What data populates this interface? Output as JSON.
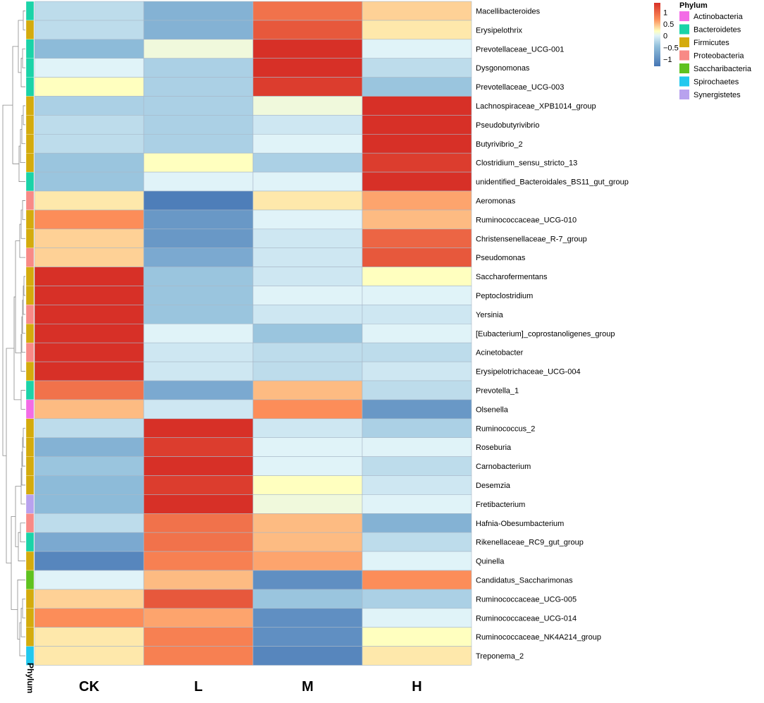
{
  "chart_data": {
    "type": "heatmap",
    "title": "",
    "columns": [
      "CK",
      "L",
      "M",
      "H"
    ],
    "rows": [
      {
        "name": "Macellibacteroides",
        "phylum": "Bacteroidetes",
        "values": [
          -0.2,
          -0.6,
          0.9,
          0.4
        ]
      },
      {
        "name": "Erysipelothrix",
        "phylum": "Firmicutes",
        "values": [
          -0.2,
          -0.6,
          1.1,
          0.3
        ]
      },
      {
        "name": "Prevotellaceae_UCG-001",
        "phylum": "Bacteroidetes",
        "values": [
          -0.5,
          0.1,
          1.4,
          0.0
        ]
      },
      {
        "name": "Dysgonomonas",
        "phylum": "Bacteroidetes",
        "values": [
          0.0,
          -0.3,
          1.4,
          -0.2
        ]
      },
      {
        "name": "Prevotellaceae_UCG-003",
        "phylum": "Bacteroidetes",
        "values": [
          0.2,
          -0.3,
          1.3,
          -0.4
        ]
      },
      {
        "name": "Lachnospiraceae_XPB1014_group",
        "phylum": "Firmicutes",
        "values": [
          -0.3,
          -0.3,
          0.1,
          1.4
        ]
      },
      {
        "name": "Pseudobutyrivibrio",
        "phylum": "Firmicutes",
        "values": [
          -0.2,
          -0.3,
          -0.1,
          1.4
        ]
      },
      {
        "name": "Butyrivibrio_2",
        "phylum": "Firmicutes",
        "values": [
          -0.2,
          -0.3,
          0.0,
          1.4
        ]
      },
      {
        "name": "Clostridium_sensu_stricto_13",
        "phylum": "Firmicutes",
        "values": [
          -0.4,
          0.2,
          -0.3,
          1.3
        ]
      },
      {
        "name": "unidentified_Bacteroidales_BS11_gut_group",
        "phylum": "Bacteroidetes",
        "values": [
          -0.4,
          0.0,
          0.0,
          1.4
        ]
      },
      {
        "name": "Aeromonas",
        "phylum": "Proteobacteria",
        "values": [
          0.3,
          -1.2,
          0.3,
          0.6
        ]
      },
      {
        "name": "Ruminococcaceae_UCG-010",
        "phylum": "Firmicutes",
        "values": [
          0.7,
          -0.9,
          0.0,
          0.5
        ]
      },
      {
        "name": "Christensenellaceae_R-7_group",
        "phylum": "Firmicutes",
        "values": [
          0.4,
          -0.9,
          -0.1,
          1.0
        ]
      },
      {
        "name": "Pseudomonas",
        "phylum": "Proteobacteria",
        "values": [
          0.4,
          -0.7,
          -0.1,
          1.1
        ]
      },
      {
        "name": "Saccharofermentans",
        "phylum": "Firmicutes",
        "values": [
          1.4,
          -0.4,
          -0.1,
          0.2
        ]
      },
      {
        "name": "Peptoclostridium",
        "phylum": "Firmicutes",
        "values": [
          1.4,
          -0.4,
          0.0,
          0.0
        ]
      },
      {
        "name": "Yersinia",
        "phylum": "Proteobacteria",
        "values": [
          1.4,
          -0.4,
          -0.1,
          -0.1
        ]
      },
      {
        "name": "[Eubacterium]_coprostanoligenes_group",
        "phylum": "Firmicutes",
        "values": [
          1.4,
          0.0,
          -0.4,
          0.0
        ]
      },
      {
        "name": "Acinetobacter",
        "phylum": "Proteobacteria",
        "values": [
          1.4,
          -0.1,
          -0.2,
          -0.2
        ]
      },
      {
        "name": "Erysipelotrichaceae_UCG-004",
        "phylum": "Firmicutes",
        "values": [
          1.4,
          -0.1,
          -0.2,
          -0.1
        ]
      },
      {
        "name": "Prevotella_1",
        "phylum": "Bacteroidetes",
        "values": [
          0.9,
          -0.7,
          0.5,
          -0.2
        ]
      },
      {
        "name": "Olsenella",
        "phylum": "Actinobacteria",
        "values": [
          0.5,
          -0.1,
          0.7,
          -0.9
        ]
      },
      {
        "name": "Ruminococcus_2",
        "phylum": "Firmicutes",
        "values": [
          -0.2,
          1.4,
          -0.1,
          -0.3
        ]
      },
      {
        "name": "Roseburia",
        "phylum": "Firmicutes",
        "values": [
          -0.6,
          1.3,
          0.0,
          0.0
        ]
      },
      {
        "name": "Carnobacterium",
        "phylum": "Firmicutes",
        "values": [
          -0.4,
          1.4,
          0.0,
          -0.2
        ]
      },
      {
        "name": "Desemzia",
        "phylum": "Firmicutes",
        "values": [
          -0.5,
          1.3,
          0.2,
          -0.1
        ]
      },
      {
        "name": "Fretibacterium",
        "phylum": "Synergistetes",
        "values": [
          -0.5,
          1.4,
          0.1,
          0.0
        ]
      },
      {
        "name": "Hafnia-Obesumbacterium",
        "phylum": "Proteobacteria",
        "values": [
          -0.2,
          0.9,
          0.5,
          -0.6
        ]
      },
      {
        "name": "Rikenellaceae_RC9_gut_group",
        "phylum": "Bacteroidetes",
        "values": [
          -0.7,
          0.9,
          0.5,
          -0.2
        ]
      },
      {
        "name": "Quinella",
        "phylum": "Firmicutes",
        "values": [
          -1.1,
          0.8,
          0.6,
          0.0
        ]
      },
      {
        "name": "Candidatus_Saccharimonas",
        "phylum": "Saccharibacteria",
        "values": [
          0.0,
          0.5,
          -1.0,
          0.7
        ]
      },
      {
        "name": "Ruminococcaceae_UCG-005",
        "phylum": "Firmicutes",
        "values": [
          0.4,
          1.1,
          -0.4,
          -0.3
        ]
      },
      {
        "name": "Ruminococcaceae_UCG-014",
        "phylum": "Firmicutes",
        "values": [
          0.7,
          0.6,
          -1.0,
          0.0
        ]
      },
      {
        "name": "Ruminococcaceae_NK4A214_group",
        "phylum": "Firmicutes",
        "values": [
          0.3,
          0.8,
          -1.0,
          0.2
        ]
      },
      {
        "name": "Treponema_2",
        "phylum": "Spirochaetes",
        "values": [
          0.3,
          0.8,
          -1.1,
          0.3
        ]
      }
    ],
    "color_scale": {
      "ticks": [
        1,
        0.5,
        0,
        -0.5,
        -1
      ],
      "tick_labels": [
        "1",
        "0.5",
        "0",
        "−0.5",
        "−1"
      ],
      "range": [
        -1.3,
        1.4
      ],
      "stops": [
        {
          "value": -1.3,
          "color": "#4575b4"
        },
        {
          "value": -0.45,
          "color": "#91bfdb"
        },
        {
          "value": 0,
          "color": "#e0f3f8"
        },
        {
          "value": 0.2,
          "color": "#ffffbf"
        },
        {
          "value": 0.7,
          "color": "#fc8d59"
        },
        {
          "value": 1.4,
          "color": "#d73027"
        }
      ]
    },
    "annotation": {
      "label": "Phylum",
      "legend_title": "Phylum",
      "categories": [
        {
          "name": "Actinobacteria",
          "color": "#f36ce6"
        },
        {
          "name": "Bacteroidetes",
          "color": "#1bd3a8"
        },
        {
          "name": "Firmicutes",
          "color": "#d4ab0d"
        },
        {
          "name": "Proteobacteria",
          "color": "#f88a86"
        },
        {
          "name": "Saccharibacteria",
          "color": "#5fc220"
        },
        {
          "name": "Spirochaetes",
          "color": "#22c8ee"
        },
        {
          "name": "Synergistetes",
          "color": "#b8a2ee"
        }
      ]
    },
    "row_dendrogram": true
  }
}
